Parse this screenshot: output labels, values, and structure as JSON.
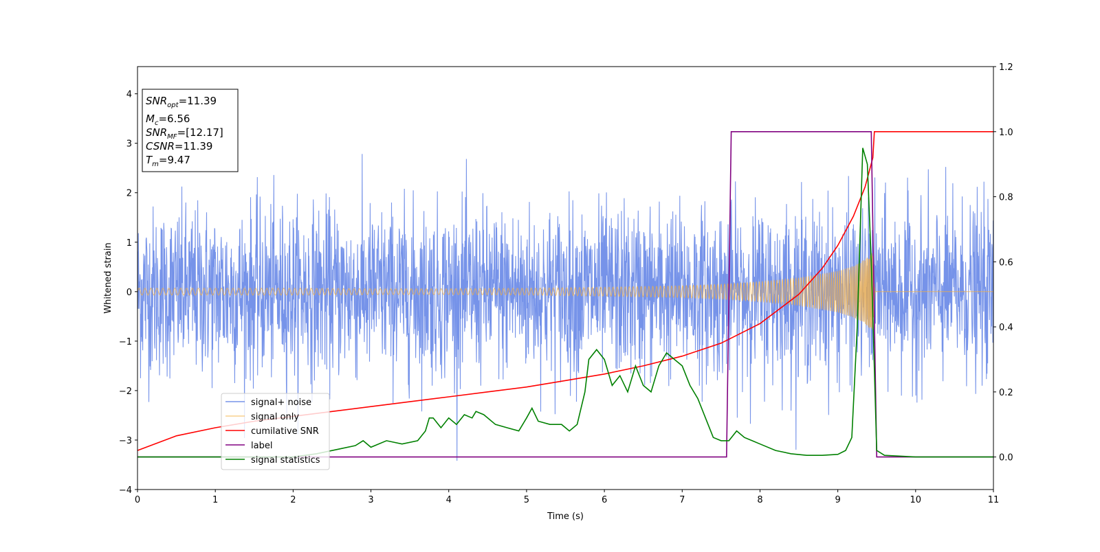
{
  "chart_data": {
    "type": "line",
    "xlabel": "Time (s)",
    "ylabel": "Whitened strain",
    "xlim": [
      0,
      11
    ],
    "ylim_left": [
      -4,
      4.55
    ],
    "ylim_right": [
      -0.1,
      1.2
    ],
    "x_ticks": [
      "0",
      "1",
      "2",
      "3",
      "4",
      "5",
      "6",
      "7",
      "8",
      "9",
      "10",
      "11"
    ],
    "y_ticks_left": [
      "−4",
      "−3",
      "−2",
      "−1",
      "0",
      "1",
      "2",
      "3",
      "4"
    ],
    "y_ticks_right": [
      "0.0",
      "0.2",
      "0.4",
      "0.6",
      "0.8",
      "1.0",
      "1.2"
    ],
    "grid": false,
    "legend_position": "lower-left",
    "annotation": [
      {
        "base": "SNR",
        "sub": "opt",
        "value": "=11.39"
      },
      {
        "base": "M",
        "sub": "c",
        "value": "=6.56"
      },
      {
        "base": "SNR",
        "sub": "MF",
        "value": "=[12.17]"
      },
      {
        "base": "CSNR",
        "sub": "",
        "value": "=11.39"
      },
      {
        "base": "T",
        "sub": "m",
        "value": "=9.47"
      }
    ],
    "series": [
      {
        "name": "signal+ noise",
        "axis": "left",
        "color": "#4169e1",
        "noise_sigma": 0.85,
        "x_range": [
          0,
          11
        ]
      },
      {
        "name": "signal only",
        "axis": "left",
        "color": "#f5b041",
        "envelope_x": [
          0,
          1,
          2,
          3,
          4,
          5,
          6,
          7,
          7.5,
          8,
          8.5,
          9,
          9.2,
          9.35,
          9.45,
          9.48,
          11
        ],
        "envelope_y": [
          0.07,
          0.07,
          0.07,
          0.06,
          0.06,
          0.07,
          0.09,
          0.12,
          0.15,
          0.2,
          0.28,
          0.42,
          0.52,
          0.65,
          0.8,
          0,
          0
        ]
      },
      {
        "name": "cumilative SNR",
        "axis": "right",
        "color": "#ff0000",
        "x": [
          0,
          0.5,
          1,
          1.5,
          2,
          2.5,
          3,
          3.5,
          4,
          4.5,
          5,
          5.5,
          6,
          6.5,
          7,
          7.5,
          8,
          8.5,
          8.8,
          9,
          9.2,
          9.35,
          9.45,
          9.47,
          9.5,
          11
        ],
        "y": [
          0.02,
          0.065,
          0.09,
          0.11,
          0.125,
          0.14,
          0.155,
          0.17,
          0.185,
          0.2,
          0.215,
          0.235,
          0.255,
          0.28,
          0.31,
          0.35,
          0.41,
          0.5,
          0.58,
          0.65,
          0.74,
          0.83,
          0.92,
          1.0,
          1.0,
          1.0
        ]
      },
      {
        "name": "label",
        "axis": "right",
        "color": "#800080",
        "x": [
          0,
          7.57,
          7.63,
          9.43,
          9.5,
          11
        ],
        "y": [
          0,
          0,
          1,
          1,
          0,
          0
        ]
      },
      {
        "name": "signal statistics",
        "axis": "right",
        "color": "#008000",
        "x": [
          0,
          2,
          2.3,
          2.6,
          2.8,
          2.9,
          3.0,
          3.2,
          3.4,
          3.6,
          3.7,
          3.75,
          3.8,
          3.9,
          4.0,
          4.1,
          4.2,
          4.3,
          4.35,
          4.45,
          4.6,
          4.75,
          4.9,
          5.0,
          5.07,
          5.15,
          5.3,
          5.45,
          5.55,
          5.65,
          5.75,
          5.8,
          5.9,
          6.0,
          6.1,
          6.2,
          6.3,
          6.4,
          6.5,
          6.6,
          6.7,
          6.8,
          6.9,
          7.0,
          7.1,
          7.2,
          7.3,
          7.4,
          7.5,
          7.6,
          7.7,
          7.8,
          7.9,
          8.0,
          8.2,
          8.4,
          8.6,
          8.8,
          9.0,
          9.1,
          9.18,
          9.25,
          9.32,
          9.38,
          9.43,
          9.5,
          9.6,
          10,
          11
        ],
        "y": [
          0,
          0,
          0.01,
          0.025,
          0.035,
          0.05,
          0.03,
          0.05,
          0.04,
          0.05,
          0.08,
          0.12,
          0.12,
          0.09,
          0.12,
          0.1,
          0.13,
          0.12,
          0.14,
          0.13,
          0.1,
          0.09,
          0.08,
          0.12,
          0.15,
          0.11,
          0.1,
          0.1,
          0.08,
          0.1,
          0.2,
          0.3,
          0.33,
          0.3,
          0.22,
          0.25,
          0.2,
          0.28,
          0.22,
          0.2,
          0.28,
          0.32,
          0.3,
          0.28,
          0.22,
          0.18,
          0.12,
          0.06,
          0.05,
          0.05,
          0.08,
          0.06,
          0.05,
          0.04,
          0.02,
          0.01,
          0.005,
          0.005,
          0.008,
          0.02,
          0.06,
          0.4,
          0.95,
          0.9,
          0.6,
          0.02,
          0.005,
          0,
          0
        ]
      }
    ]
  }
}
